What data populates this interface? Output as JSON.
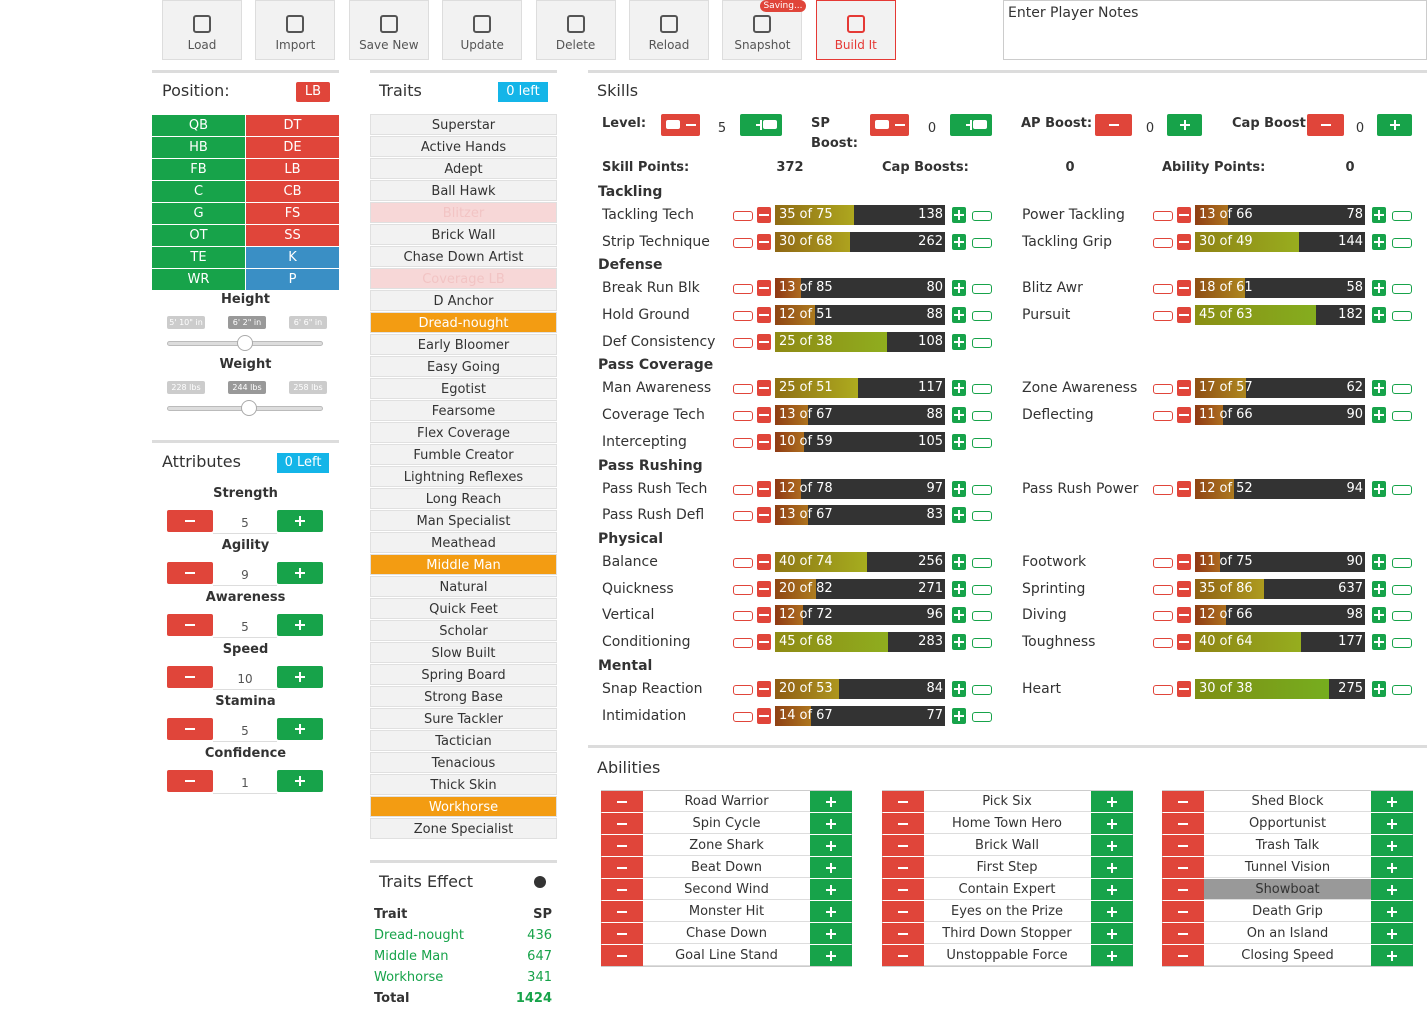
{
  "toolbar": {
    "buttons": [
      "Load",
      "Import",
      "Save New",
      "Update",
      "Delete",
      "Reload",
      "Snapshot",
      "Build It"
    ],
    "saving_badge": "Saving...",
    "notes_placeholder": "Enter Player Notes"
  },
  "position": {
    "title": "Position:",
    "selected": "LB",
    "offense": [
      "QB",
      "HB",
      "FB",
      "C",
      "G",
      "OT",
      "TE",
      "WR"
    ],
    "defense": [
      "DT",
      "DE",
      "LB",
      "CB",
      "FS",
      "SS"
    ],
    "special": [
      "K",
      "P"
    ],
    "height": {
      "label": "Height",
      "ticks": [
        "5' 10\" in",
        "6' 2\" in",
        "6' 6\" in"
      ]
    },
    "weight": {
      "label": "Weight",
      "ticks": [
        "228 lbs",
        "244 lbs",
        "258 lbs"
      ]
    }
  },
  "attributes": {
    "title": "Attributes",
    "badge": "0 Left",
    "items": [
      {
        "name": "Strength",
        "value": 5
      },
      {
        "name": "Agility",
        "value": 9
      },
      {
        "name": "Awareness",
        "value": 5
      },
      {
        "name": "Speed",
        "value": 10
      },
      {
        "name": "Stamina",
        "value": 5
      },
      {
        "name": "Confidence",
        "value": 1
      }
    ]
  },
  "traits": {
    "title": "Traits",
    "badge": "0 left",
    "items": [
      {
        "name": "Superstar"
      },
      {
        "name": "Active Hands"
      },
      {
        "name": "Adept"
      },
      {
        "name": "Ball Hawk"
      },
      {
        "name": "Blitzer",
        "state": "unavailable"
      },
      {
        "name": "Brick Wall"
      },
      {
        "name": "Chase Down Artist"
      },
      {
        "name": "Coverage LB",
        "state": "unavailable"
      },
      {
        "name": "D Anchor"
      },
      {
        "name": "Dread-nought",
        "state": "selected"
      },
      {
        "name": "Early Bloomer"
      },
      {
        "name": "Easy Going"
      },
      {
        "name": "Egotist"
      },
      {
        "name": "Fearsome"
      },
      {
        "name": "Flex Coverage"
      },
      {
        "name": "Fumble Creator"
      },
      {
        "name": "Lightning Reflexes"
      },
      {
        "name": "Long Reach"
      },
      {
        "name": "Man Specialist"
      },
      {
        "name": "Meathead"
      },
      {
        "name": "Middle Man",
        "state": "selected"
      },
      {
        "name": "Natural"
      },
      {
        "name": "Quick Feet"
      },
      {
        "name": "Scholar"
      },
      {
        "name": "Slow Built"
      },
      {
        "name": "Spring Board"
      },
      {
        "name": "Strong Base"
      },
      {
        "name": "Sure Tackler"
      },
      {
        "name": "Tactician"
      },
      {
        "name": "Tenacious"
      },
      {
        "name": "Thick Skin"
      },
      {
        "name": "Workhorse",
        "state": "selected"
      },
      {
        "name": "Zone Specialist"
      }
    ]
  },
  "traits_effect": {
    "title": "Traits Effect",
    "headers": [
      "Trait",
      "SP"
    ],
    "rows": [
      [
        "Dread-nought",
        436
      ],
      [
        "Middle Man",
        647
      ],
      [
        "Workhorse",
        341
      ]
    ],
    "total": [
      "Total",
      1424
    ]
  },
  "skills": {
    "title": "Skills",
    "rating_separator": "of",
    "controls": [
      {
        "label": "Level:",
        "value": 5
      },
      {
        "label": "SP Boost:",
        "value": 0
      },
      {
        "label": "AP Boost:",
        "value": 0
      },
      {
        "label": "Cap Boost:",
        "value": 0
      }
    ],
    "summary": [
      {
        "label": "Skill Points:",
        "value": 372
      },
      {
        "label": "Cap Boosts:",
        "value": 0
      },
      {
        "label": "Ability Points:",
        "value": 0
      }
    ],
    "groups": [
      {
        "name": "Tackling",
        "rows": [
          [
            {
              "name": "Tackling Tech",
              "value": 35,
              "max": 75,
              "cost": 138
            },
            {
              "name": "Power Tackling",
              "value": 13,
              "max": 66,
              "cost": 78
            }
          ],
          [
            {
              "name": "Strip Technique",
              "value": 30,
              "max": 68,
              "cost": 262
            },
            {
              "name": "Tackling Grip",
              "value": 30,
              "max": 49,
              "cost": 144
            }
          ]
        ]
      },
      {
        "name": "Defense",
        "rows": [
          [
            {
              "name": "Break Run Blk",
              "value": 13,
              "max": 85,
              "cost": 80
            },
            {
              "name": "Blitz Awr",
              "value": 18,
              "max": 61,
              "cost": 58
            }
          ],
          [
            {
              "name": "Hold Ground",
              "value": 12,
              "max": 51,
              "cost": 88
            },
            {
              "name": "Pursuit",
              "value": 45,
              "max": 63,
              "cost": 182
            }
          ],
          [
            {
              "name": "Def Consistency",
              "value": 25,
              "max": 38,
              "cost": 108
            }
          ]
        ]
      },
      {
        "name": "Pass Coverage",
        "rows": [
          [
            {
              "name": "Man Awareness",
              "value": 25,
              "max": 51,
              "cost": 117
            },
            {
              "name": "Zone Awareness",
              "value": 17,
              "max": 57,
              "cost": 62
            }
          ],
          [
            {
              "name": "Coverage Tech",
              "value": 13,
              "max": 67,
              "cost": 88
            },
            {
              "name": "Deflecting",
              "value": 11,
              "max": 66,
              "cost": 90
            }
          ],
          [
            {
              "name": "Intercepting",
              "value": 10,
              "max": 59,
              "cost": 105
            }
          ]
        ]
      },
      {
        "name": "Pass Rushing",
        "rows": [
          [
            {
              "name": "Pass Rush Tech",
              "value": 12,
              "max": 78,
              "cost": 97
            },
            {
              "name": "Pass Rush Power",
              "value": 12,
              "max": 52,
              "cost": 94
            }
          ],
          [
            {
              "name": "Pass Rush Defl",
              "value": 13,
              "max": 67,
              "cost": 83
            }
          ]
        ]
      },
      {
        "name": "Physical",
        "rows": [
          [
            {
              "name": "Balance",
              "value": 40,
              "max": 74,
              "cost": 256
            },
            {
              "name": "Footwork",
              "value": 11,
              "max": 75,
              "cost": 90
            }
          ],
          [
            {
              "name": "Quickness",
              "value": 20,
              "max": 82,
              "cost": 271
            },
            {
              "name": "Sprinting",
              "value": 35,
              "max": 86,
              "cost": 637
            }
          ],
          [
            {
              "name": "Vertical",
              "value": 12,
              "max": 72,
              "cost": 96
            },
            {
              "name": "Diving",
              "value": 12,
              "max": 66,
              "cost": 98
            }
          ],
          [
            {
              "name": "Conditioning",
              "value": 45,
              "max": 68,
              "cost": 283
            },
            {
              "name": "Toughness",
              "value": 40,
              "max": 64,
              "cost": 177
            }
          ]
        ]
      },
      {
        "name": "Mental",
        "rows": [
          [
            {
              "name": "Snap Reaction",
              "value": 20,
              "max": 53,
              "cost": 84
            },
            {
              "name": "Heart",
              "value": 30,
              "max": 38,
              "cost": 275
            }
          ],
          [
            {
              "name": "Intimidation",
              "value": 14,
              "max": 67,
              "cost": 77
            }
          ]
        ]
      }
    ]
  },
  "abilities": {
    "title": "Abilities",
    "columns": [
      [
        {
          "name": "Road Warrior"
        },
        {
          "name": "Spin Cycle"
        },
        {
          "name": "Zone Shark"
        },
        {
          "name": "Beat Down"
        },
        {
          "name": "Second Wind"
        },
        {
          "name": "Monster Hit"
        },
        {
          "name": "Chase Down"
        },
        {
          "name": "Goal Line Stand"
        }
      ],
      [
        {
          "name": "Pick Six"
        },
        {
          "name": "Home Town Hero"
        },
        {
          "name": "Brick Wall"
        },
        {
          "name": "First Step"
        },
        {
          "name": "Contain Expert"
        },
        {
          "name": "Eyes on the Prize"
        },
        {
          "name": "Third Down Stopper"
        },
        {
          "name": "Unstoppable Force"
        }
      ],
      [
        {
          "name": "Shed Block"
        },
        {
          "name": "Opportunist"
        },
        {
          "name": "Trash Talk"
        },
        {
          "name": "Tunnel Vision"
        },
        {
          "name": "Showboat",
          "state": "disabled"
        },
        {
          "name": "Death Grip"
        },
        {
          "name": "On an Island"
        },
        {
          "name": "Closing Speed"
        }
      ]
    ]
  }
}
